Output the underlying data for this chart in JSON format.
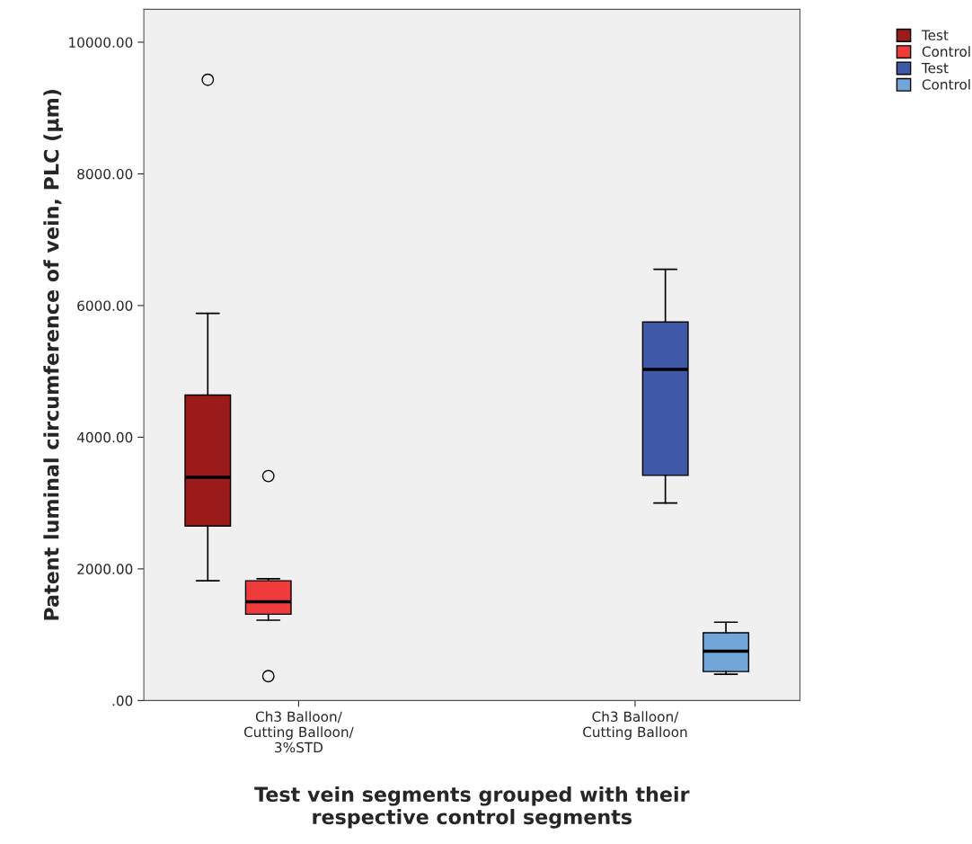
{
  "chart_data": {
    "type": "box",
    "xlabel": "Test vein segments grouped with their\nrespective control segments",
    "ylabel": "Patent luminal circumference of vein, PLC (µm)",
    "categories": [
      "Ch3 Balloon/\nCutting Balloon/\n3%STD",
      "Ch3 Balloon/\nCutting Balloon"
    ],
    "ylim": [
      0,
      10500
    ],
    "yticks": [
      {
        "value": 0,
        "label": ".00"
      },
      {
        "value": 2000,
        "label": "2000.00"
      },
      {
        "value": 4000,
        "label": "4000.00"
      },
      {
        "value": 6000,
        "label": "6000.00"
      },
      {
        "value": 8000,
        "label": "8000.00"
      },
      {
        "value": 10000,
        "label": "10000.00"
      }
    ],
    "grid": false,
    "legend": "top right",
    "series": [
      {
        "name": "Test",
        "color": "#9b1b1b",
        "boxes": [
          {
            "low": 1820,
            "q1": 2650,
            "median": 3390,
            "q3": 4640,
            "high": 5880,
            "outliers": [
              9430
            ]
          },
          null
        ]
      },
      {
        "name": "Control",
        "color": "#ef3b3b",
        "boxes": [
          {
            "low": 1220,
            "q1": 1310,
            "median": 1500,
            "q3": 1820,
            "high": 1850,
            "outliers": [
              370,
              3410
            ]
          },
          null
        ]
      },
      {
        "name": "Test",
        "color": "#3f58a8",
        "boxes": [
          null,
          {
            "low": 3000,
            "q1": 3420,
            "median": 5030,
            "q3": 5750,
            "high": 6550
          }
        ]
      },
      {
        "name": "Control",
        "color": "#72a6d8",
        "boxes": [
          null,
          {
            "low": 400,
            "q1": 440,
            "median": 750,
            "q3": 1030,
            "high": 1190
          }
        ]
      }
    ]
  }
}
